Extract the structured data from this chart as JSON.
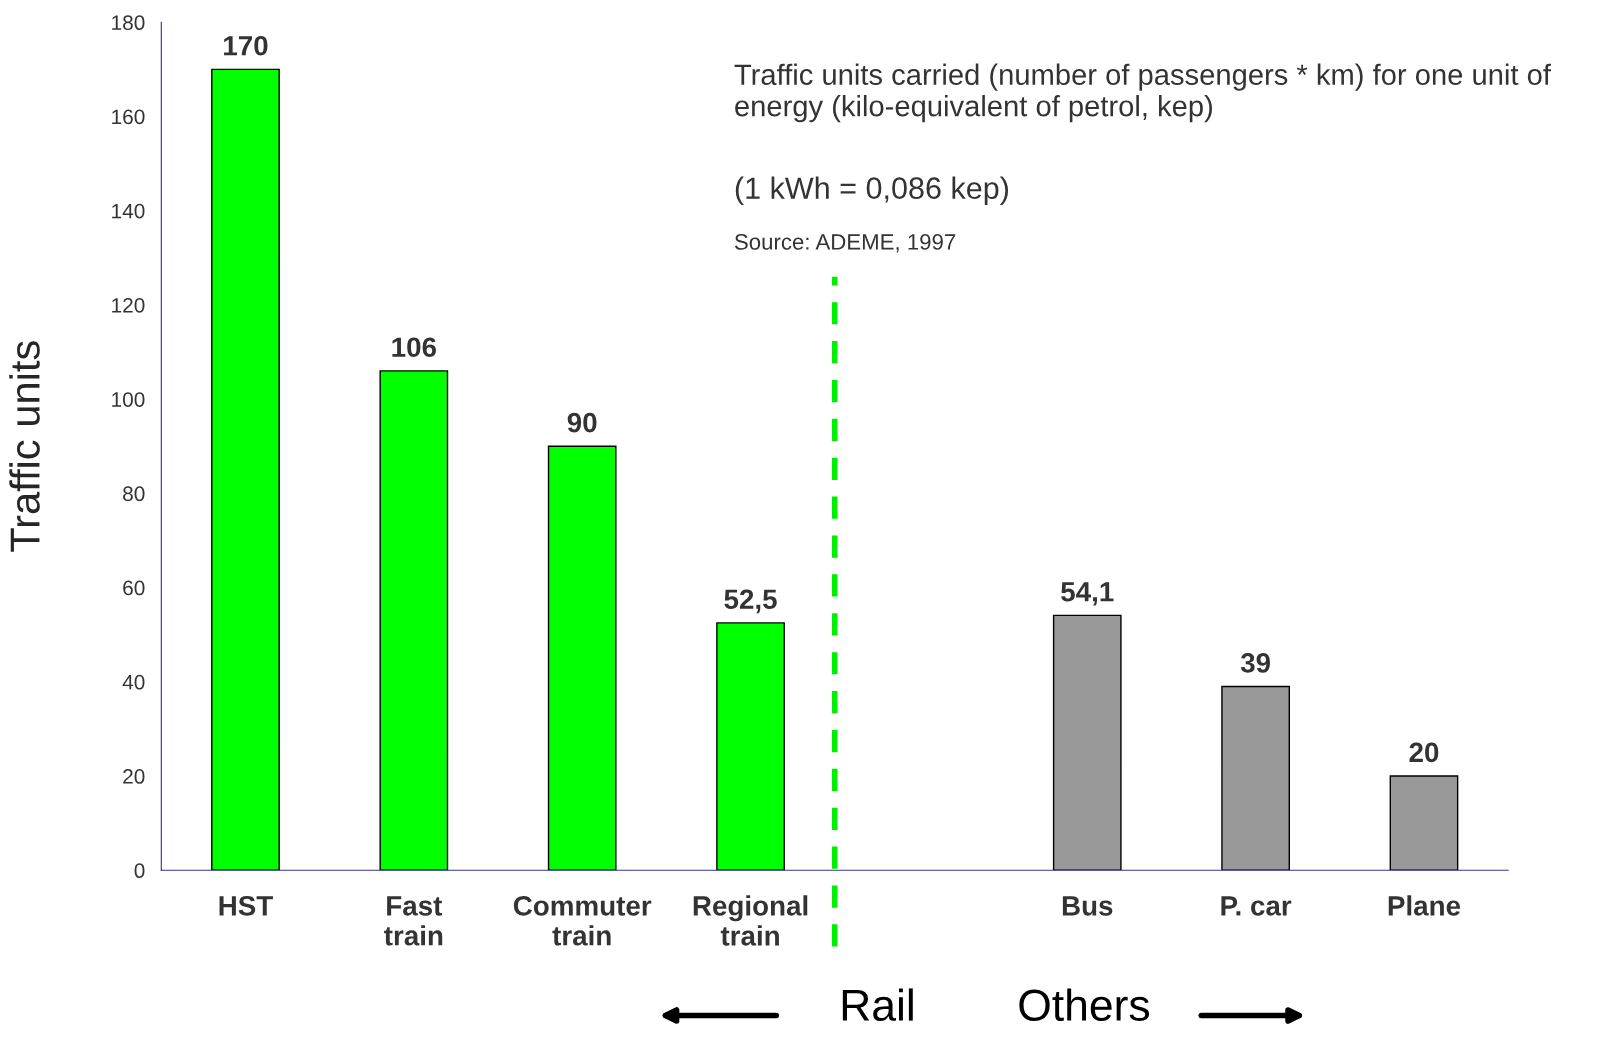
{
  "chart_data": {
    "type": "bar",
    "ylabel": "Traffic units",
    "categories": [
      "HST",
      "Fast train",
      "Commuter train",
      "Regional train",
      null,
      "Bus",
      "P. car",
      "Plane"
    ],
    "values": [
      170,
      106,
      90,
      52.5,
      null,
      54.1,
      39,
      20
    ],
    "colors": [
      "#00ff00",
      "#00ff00",
      "#00ff00",
      "#00ff00",
      null,
      "#999999",
      "#999999",
      "#999999"
    ],
    "value_labels": [
      "170",
      "106",
      "90",
      "52,5",
      null,
      "54,1",
      "39",
      "20"
    ],
    "ylim": [
      0,
      180
    ],
    "yticks": [
      0,
      20,
      40,
      60,
      80,
      100,
      120,
      140,
      160,
      180
    ],
    "annotations": [
      "Traffic units carried (number of passengers * km) for one unit of energy (kilo-equivalent of petrol, kep)",
      "(1 kWh = 0,086 kep)",
      "Source: ADEME, 1997",
      "Rail",
      "Others"
    ],
    "grid": false,
    "legend": false
  }
}
